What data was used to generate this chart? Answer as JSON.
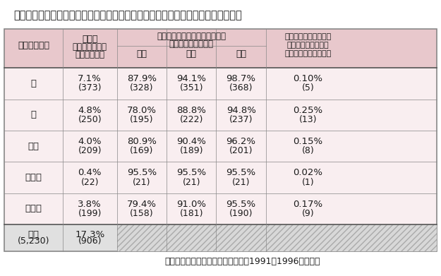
{
  "title": "表９　大腸癌治癒切除後の初発再発部位別再発率と術後経過年数別累積再発出現率",
  "footnote": "（大腸癌研究会プロジェクト研究　1991〜1996年症例）",
  "header_row1": [
    "",
    "再発率",
    "術後経過年数別累積再発出現率",
    "",
    "",
    "術後５年を超えて出現"
  ],
  "header_row2": [
    "初発再発部位",
    "（再発症例数）",
    "（累積再発症例数）",
    "",
    "",
    "する再発例が全体に"
  ],
  "header_row3": [
    "",
    "（重複含む）",
    "３年",
    "４年",
    "５年",
    "占める割合（症例数）"
  ],
  "rows": [
    {
      "site": "肝",
      "rate": "7.1%",
      "rate_n": "(373)",
      "y3": "87.9%",
      "y3_n": "(328)",
      "y4": "94.1%",
      "y4_n": "(351)",
      "y5": "98.7%",
      "y5_n": "(368)",
      "over5": "0.10%",
      "over5_n": "(5)"
    },
    {
      "site": "肺",
      "rate": "4.8%",
      "rate_n": "(250)",
      "y3": "78.0%",
      "y3_n": "(195)",
      "y4": "88.8%",
      "y4_n": "(222)",
      "y5": "94.8%",
      "y5_n": "(237)",
      "over5": "0.25%",
      "over5_n": "(13)"
    },
    {
      "site": "局所",
      "rate": "4.0%",
      "rate_n": "(209)",
      "y3": "80.9%",
      "y3_n": "(169)",
      "y4": "90.4%",
      "y4_n": "(189)",
      "y5": "96.2%",
      "y5_n": "(201)",
      "over5": "0.15%",
      "over5_n": "(8)"
    },
    {
      "site": "吻合部",
      "rate": "0.4%",
      "rate_n": "(22)",
      "y3": "95.5%",
      "y3_n": "(21)",
      "y4": "95.5%",
      "y4_n": "(21)",
      "y5": "95.5%",
      "y5_n": "(21)",
      "over5": "0.02%",
      "over5_n": "(1)"
    },
    {
      "site": "その他",
      "rate": "3.8%",
      "rate_n": "(199)",
      "y3": "79.4%",
      "y3_n": "(158)",
      "y4": "91.0%",
      "y4_n": "(181)",
      "y5": "95.5%",
      "y5_n": "(190)",
      "over5": "0.17%",
      "over5_n": "(9)"
    }
  ],
  "footer": {
    "site": "全体\n(5,230)",
    "rate": "17.3%\n(906)"
  },
  "header_bg": "#e8c8cc",
  "body_bg": "#f9eef0",
  "footer_bg": "#e0e0e0",
  "text_color": "#1a1a1a",
  "border_color": "#888888",
  "title_fontsize": 10.5,
  "cell_fontsize": 9.5,
  "footnote_fontsize": 9
}
